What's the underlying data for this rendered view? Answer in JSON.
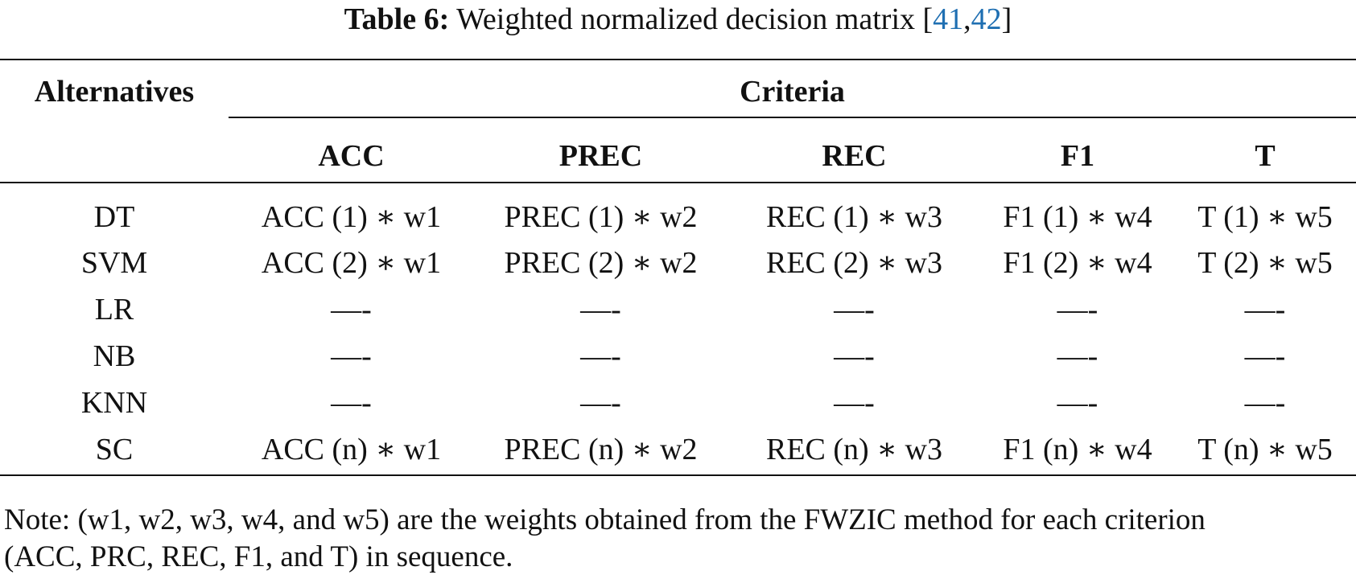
{
  "caption": {
    "label": "Table 6:",
    "text": "Weighted normalized decision matrix [",
    "ref1": "41",
    "sep": ",",
    "ref2": "42",
    "close": "]",
    "link_color": "#1f6fb2"
  },
  "table": {
    "alternatives_header": "Alternatives",
    "criteria_header": "Criteria",
    "criteria": [
      "ACC",
      "PREC",
      "REC",
      "F1",
      "T"
    ],
    "rows": [
      {
        "alt": "DT",
        "cells": [
          "ACC (1) ∗ w1",
          "PREC (1) ∗ w2",
          "REC (1) ∗ w3",
          "F1 (1) ∗ w4",
          "T (1) ∗ w5"
        ]
      },
      {
        "alt": "SVM",
        "cells": [
          "ACC (2) ∗ w1",
          "PREC (2) ∗ w2",
          "REC (2) ∗ w3",
          "F1 (2) ∗ w4",
          "T (2) ∗ w5"
        ]
      },
      {
        "alt": "LR",
        "cells": [
          "—-",
          "—-",
          "—-",
          "—-",
          "—-"
        ]
      },
      {
        "alt": "NB",
        "cells": [
          "—-",
          "—-",
          "—-",
          "—-",
          "—-"
        ]
      },
      {
        "alt": "KNN",
        "cells": [
          "—-",
          "—-",
          "—-",
          "—-",
          "—-"
        ]
      },
      {
        "alt": "SC",
        "cells": [
          "ACC (n) ∗ w1",
          "PREC (n) ∗ w2",
          "REC (n) ∗ w3",
          "F1 (n) ∗ w4",
          "T (n) ∗ w5"
        ]
      }
    ]
  },
  "note": {
    "line1": "Note: (w1, w2, w3, w4, and w5) are the weights obtained from the FWZIC method for each criterion",
    "line2": "(ACC,  PRC,  REC, F1,  and T) in sequence."
  }
}
